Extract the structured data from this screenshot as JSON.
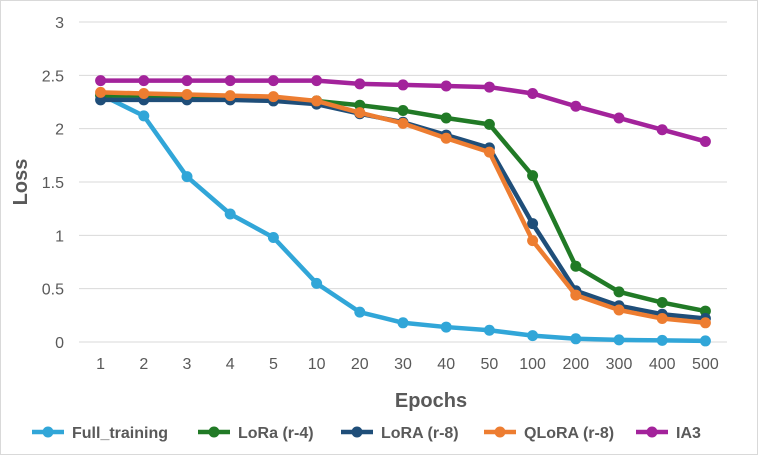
{
  "chart_data": {
    "type": "line",
    "xlabel": "Epochs",
    "ylabel": "Loss",
    "categories": [
      "1",
      "2",
      "3",
      "4",
      "5",
      "10",
      "20",
      "30",
      "40",
      "50",
      "100",
      "200",
      "300",
      "400",
      "500"
    ],
    "ylim": [
      0,
      3
    ],
    "yticks": [
      "0",
      "0.5",
      "1",
      "1.5",
      "2",
      "2.5",
      "3"
    ],
    "grid": "horizontal",
    "legend_position": "bottom",
    "series": [
      {
        "name": "Full_training",
        "color": "#31a6d8",
        "values": [
          2.32,
          2.12,
          1.55,
          1.2,
          0.98,
          0.55,
          0.28,
          0.18,
          0.14,
          0.11,
          0.06,
          0.03,
          0.02,
          0.015,
          0.01
        ]
      },
      {
        "name": "LoRa (r-4)",
        "color": "#217a26",
        "values": [
          2.31,
          2.31,
          2.3,
          2.29,
          2.28,
          2.26,
          2.22,
          2.17,
          2.1,
          2.04,
          1.56,
          0.71,
          0.47,
          0.37,
          0.29
        ]
      },
      {
        "name": "LoRA (r-8)",
        "color": "#1f4e79",
        "values": [
          2.27,
          2.27,
          2.27,
          2.27,
          2.26,
          2.23,
          2.14,
          2.06,
          1.94,
          1.82,
          1.11,
          0.48,
          0.34,
          0.26,
          0.22
        ]
      },
      {
        "name": "QLoRA (r-8)",
        "color": "#ed7d31",
        "values": [
          2.34,
          2.33,
          2.32,
          2.31,
          2.3,
          2.26,
          2.15,
          2.05,
          1.91,
          1.78,
          0.95,
          0.44,
          0.3,
          0.22,
          0.18
        ]
      },
      {
        "name": "IA3",
        "color": "#a3239b",
        "values": [
          2.45,
          2.45,
          2.45,
          2.45,
          2.45,
          2.45,
          2.42,
          2.41,
          2.4,
          2.39,
          2.33,
          2.21,
          2.1,
          1.99,
          1.88
        ]
      }
    ]
  }
}
